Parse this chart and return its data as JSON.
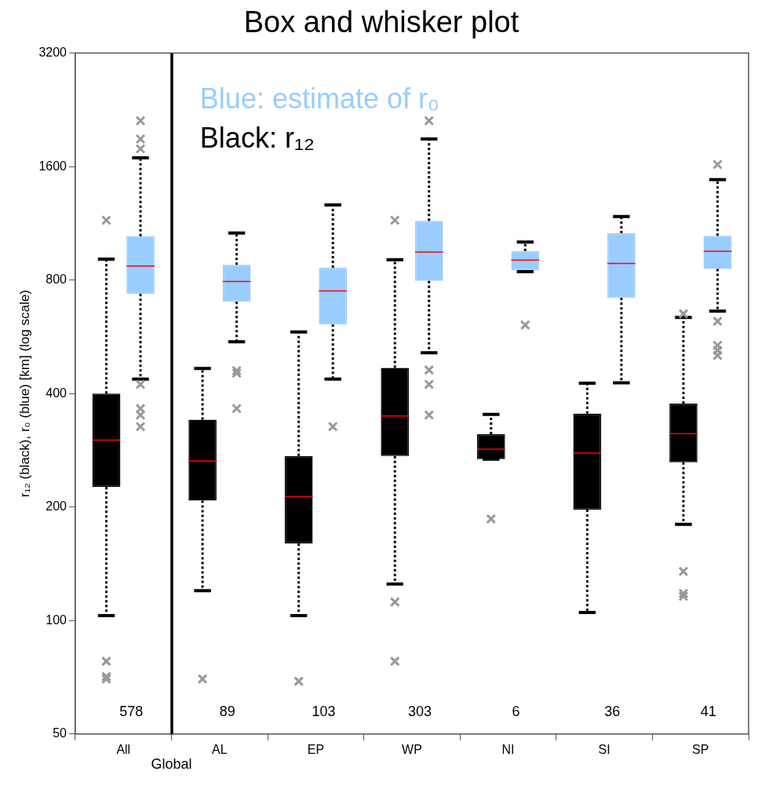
{
  "chart_data": {
    "type": "box",
    "title": "Box and whisker plot",
    "ylabel": "r₁₂ (black), r₀ (blue) [km] (log scale)",
    "categories": [
      "All",
      "AL",
      "EP",
      "WP",
      "NI",
      "SI",
      "SP"
    ],
    "log": "y",
    "ylim": [
      50,
      3200
    ],
    "yticks": [
      50,
      100,
      200,
      400,
      800,
      1600,
      3200
    ],
    "legend": "top left",
    "marker": "cross",
    "series": [
      {
        "name": "Black: r₁₂",
        "color": "#000000",
        "boxes": [
          {
            "low": 103,
            "q1": 226,
            "median": 301,
            "q3": 400,
            "high": 909,
            "outliers": [
              1153,
              78,
              71,
              70
            ]
          },
          {
            "low": 120,
            "q1": 208,
            "median": 265,
            "q3": 341,
            "high": 466,
            "outliers": [
              70
            ]
          },
          {
            "low": 103,
            "q1": 160,
            "median": 213,
            "q3": 273,
            "high": 583,
            "outliers": [
              69
            ]
          },
          {
            "low": 125,
            "q1": 273,
            "median": 349,
            "q3": 468,
            "high": 906,
            "outliers": [
              1153,
              112,
              78
            ]
          },
          {
            "low": 268,
            "q1": 268,
            "median": 285,
            "q3": 312,
            "high": 352,
            "outliers": [
              186
            ]
          },
          {
            "low": 105,
            "q1": 197,
            "median": 278,
            "q3": 354,
            "high": 426
          },
          {
            "low": 180,
            "q1": 263,
            "median": 313,
            "q3": 376,
            "high": 637,
            "outliers": [
              651,
              135,
              118,
              116
            ]
          }
        ]
      },
      {
        "name": "Blue: estimate of r₀",
        "color": "#99ccff",
        "boxes": [
          {
            "low": 437,
            "q1": 735,
            "median": 872,
            "q3": 1046,
            "high": 1687,
            "outliers": [
              2117,
              1894,
              1783,
              423,
              365,
              351,
              327
            ]
          },
          {
            "low": 549,
            "q1": 701,
            "median": 793,
            "q3": 878,
            "high": 1066,
            "outliers": [
              460,
              453,
              365
            ]
          },
          {
            "low": 437,
            "q1": 610,
            "median": 749,
            "q3": 862,
            "high": 1265,
            "outliers": [
              327
            ]
          },
          {
            "low": 513,
            "q1": 796,
            "median": 949,
            "q3": 1149,
            "high": 1894,
            "outliers": [
              2117,
              462,
              423,
              351
            ]
          },
          {
            "low": 842,
            "q1": 850,
            "median": 904,
            "q3": 955,
            "high": 1009,
            "outliers": [
              608
            ]
          },
          {
            "low": 427,
            "q1": 718,
            "median": 885,
            "q3": 1065,
            "high": 1179
          },
          {
            "low": 662,
            "q1": 856,
            "median": 954,
            "q3": 1049,
            "high": 1478,
            "outliers": [
              1620,
              622,
              537,
              521,
              505
            ]
          }
        ]
      }
    ],
    "annotations": [
      "578",
      "89",
      "103",
      "303",
      "6",
      "36",
      "41",
      "Global"
    ]
  }
}
